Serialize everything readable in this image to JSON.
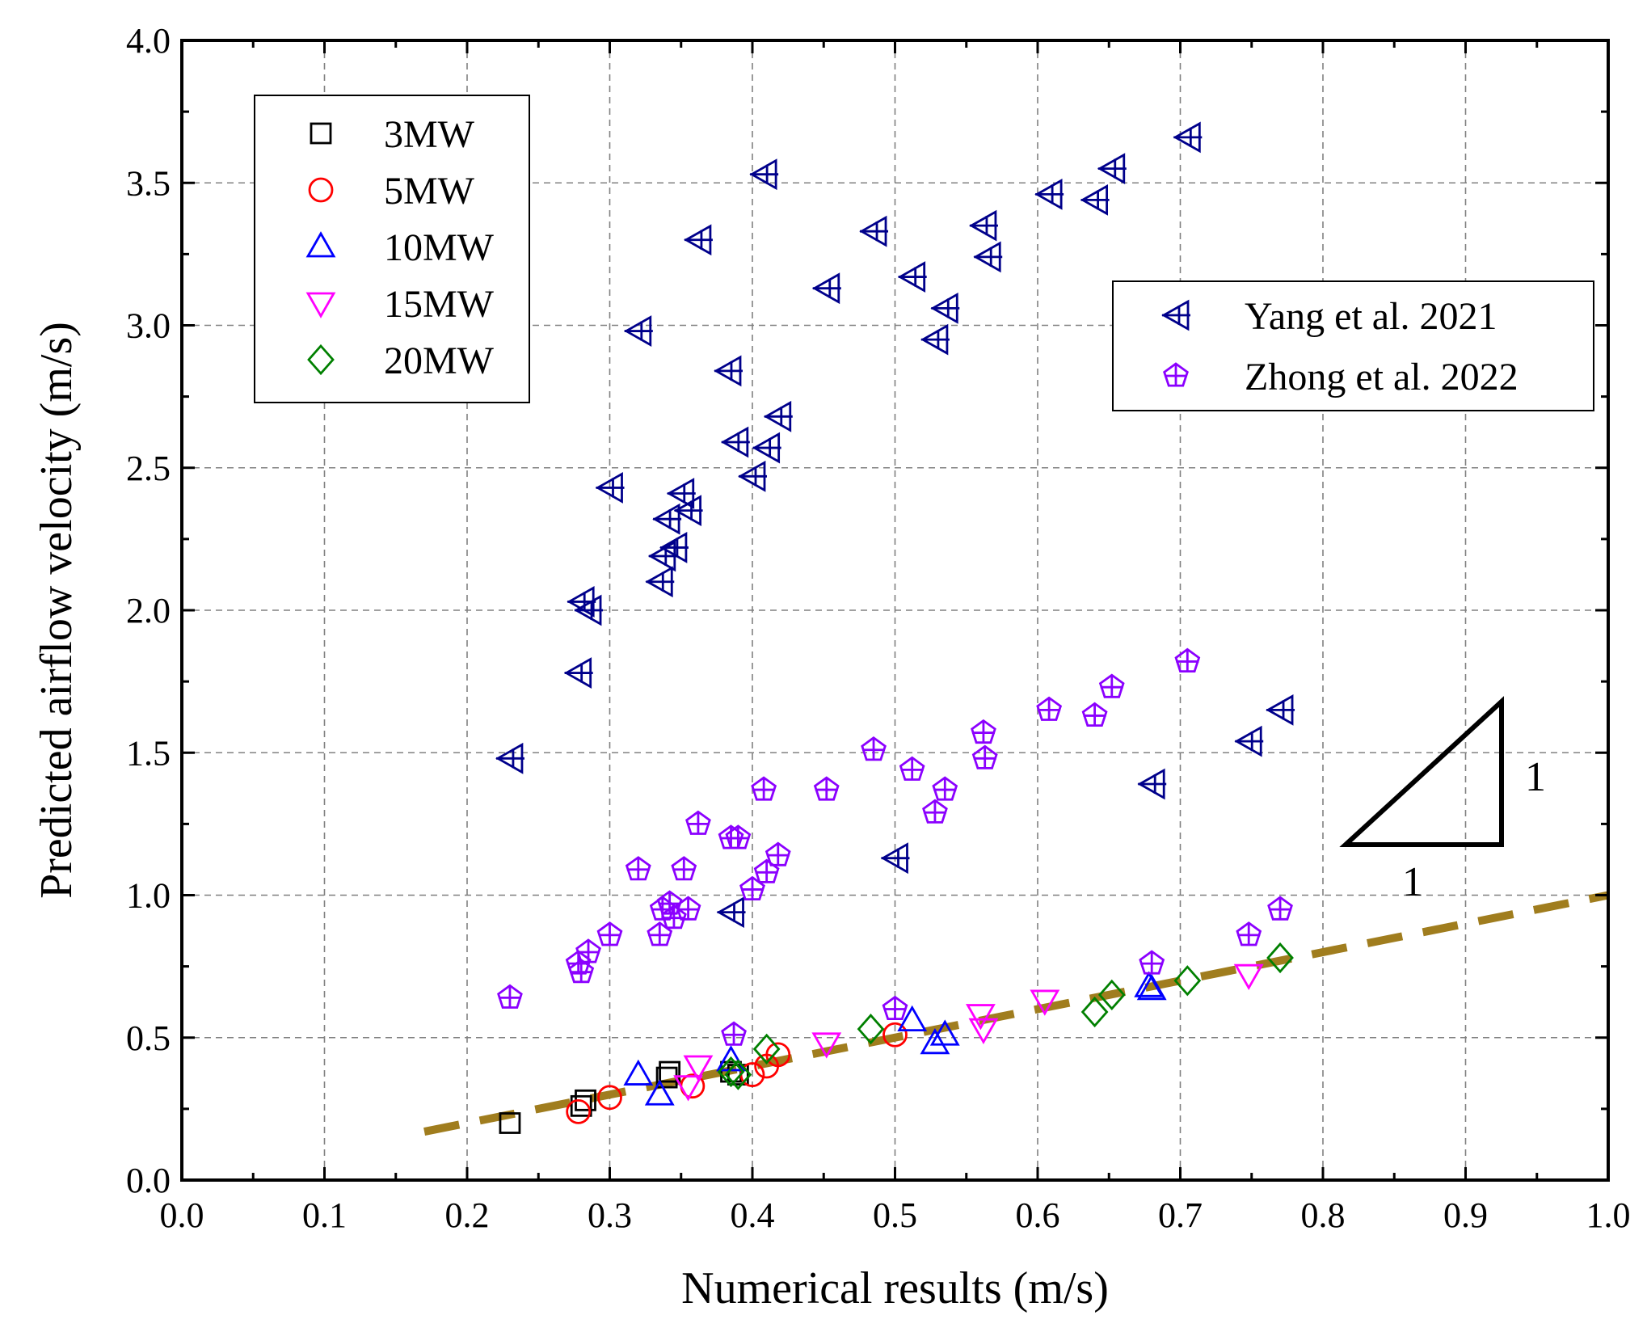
{
  "chart_data": {
    "type": "scatter",
    "xlabel": "Numerical results (m/s)",
    "ylabel": "Predicted airflow velocity (m/s)",
    "xlim": [
      0.0,
      1.0
    ],
    "ylim": [
      0.0,
      4.0
    ],
    "xticks": [
      "0.0",
      "0.1",
      "0.2",
      "0.3",
      "0.4",
      "0.5",
      "0.6",
      "0.7",
      "0.8",
      "0.9",
      "1.0"
    ],
    "yticks": [
      "0.0",
      "0.5",
      "1.0",
      "1.5",
      "2.0",
      "2.5",
      "3.0",
      "3.5",
      "4.0"
    ],
    "grid": true,
    "reference_line": {
      "name": "1:1 line",
      "x": [
        0.17,
        1.0
      ],
      "y": [
        0.17,
        1.0
      ],
      "color": "#A07D1E",
      "style": "dashed"
    },
    "slope_triangle": {
      "horizontal_label": "1",
      "vertical_label": "1"
    },
    "series": [
      {
        "name": "3MW",
        "marker": "square",
        "color": "#000000",
        "points": [
          [
            0.23,
            0.2
          ],
          [
            0.28,
            0.26
          ],
          [
            0.283,
            0.28
          ],
          [
            0.34,
            0.36
          ],
          [
            0.342,
            0.38
          ],
          [
            0.385,
            0.38
          ],
          [
            0.39,
            0.37
          ]
        ]
      },
      {
        "name": "5MW",
        "marker": "circle",
        "color": "#FF0000",
        "points": [
          [
            0.278,
            0.24
          ],
          [
            0.3,
            0.29
          ],
          [
            0.358,
            0.33
          ],
          [
            0.4,
            0.37
          ],
          [
            0.41,
            0.4
          ],
          [
            0.418,
            0.44
          ],
          [
            0.5,
            0.51
          ]
        ]
      },
      {
        "name": "10MW",
        "marker": "triangle-up",
        "color": "#0000FF",
        "points": [
          [
            0.32,
            0.37
          ],
          [
            0.335,
            0.3
          ],
          [
            0.385,
            0.42
          ],
          [
            0.512,
            0.56
          ],
          [
            0.528,
            0.48
          ],
          [
            0.535,
            0.51
          ],
          [
            0.678,
            0.68
          ],
          [
            0.68,
            0.67
          ]
        ]
      },
      {
        "name": "15MW",
        "marker": "triangle-down",
        "color": "#FF00FF",
        "points": [
          [
            0.355,
            0.33
          ],
          [
            0.362,
            0.4
          ],
          [
            0.452,
            0.48
          ],
          [
            0.56,
            0.58
          ],
          [
            0.562,
            0.53
          ],
          [
            0.605,
            0.63
          ],
          [
            0.748,
            0.72
          ]
        ]
      },
      {
        "name": "20MW",
        "marker": "diamond",
        "color": "#008000",
        "points": [
          [
            0.385,
            0.38
          ],
          [
            0.39,
            0.37
          ],
          [
            0.41,
            0.46
          ],
          [
            0.483,
            0.53
          ],
          [
            0.64,
            0.59
          ],
          [
            0.652,
            0.65
          ],
          [
            0.705,
            0.7
          ],
          [
            0.77,
            0.78
          ]
        ]
      },
      {
        "name": "Yang et al. 2021",
        "marker": "arrow-left-cross",
        "color": "#00008B",
        "points": [
          [
            0.23,
            1.48
          ],
          [
            0.278,
            1.78
          ],
          [
            0.28,
            2.03
          ],
          [
            0.285,
            2.0
          ],
          [
            0.3,
            2.43
          ],
          [
            0.32,
            2.98
          ],
          [
            0.335,
            2.1
          ],
          [
            0.337,
            2.19
          ],
          [
            0.34,
            2.32
          ],
          [
            0.345,
            2.22
          ],
          [
            0.35,
            2.41
          ],
          [
            0.355,
            2.35
          ],
          [
            0.362,
            3.3
          ],
          [
            0.385,
            0.94
          ],
          [
            0.383,
            2.84
          ],
          [
            0.388,
            2.59
          ],
          [
            0.4,
            2.47
          ],
          [
            0.41,
            2.57
          ],
          [
            0.408,
            3.53
          ],
          [
            0.418,
            2.68
          ],
          [
            0.452,
            3.13
          ],
          [
            0.485,
            3.33
          ],
          [
            0.5,
            1.13
          ],
          [
            0.512,
            3.17
          ],
          [
            0.528,
            2.95
          ],
          [
            0.535,
            3.06
          ],
          [
            0.562,
            3.35
          ],
          [
            0.565,
            3.24
          ],
          [
            0.608,
            3.46
          ],
          [
            0.64,
            3.44
          ],
          [
            0.652,
            3.55
          ],
          [
            0.68,
            1.39
          ],
          [
            0.705,
            3.66
          ],
          [
            0.748,
            1.54
          ],
          [
            0.77,
            1.65
          ]
        ]
      },
      {
        "name": "Zhong et al. 2022",
        "marker": "pentagon-cross",
        "color": "#8B00FF",
        "points": [
          [
            0.23,
            0.64
          ],
          [
            0.278,
            0.76
          ],
          [
            0.28,
            0.73
          ],
          [
            0.285,
            0.8
          ],
          [
            0.3,
            0.86
          ],
          [
            0.32,
            1.09
          ],
          [
            0.335,
            0.86
          ],
          [
            0.337,
            0.95
          ],
          [
            0.342,
            0.97
          ],
          [
            0.345,
            0.92
          ],
          [
            0.352,
            1.09
          ],
          [
            0.355,
            0.95
          ],
          [
            0.362,
            1.25
          ],
          [
            0.385,
            1.2
          ],
          [
            0.387,
            0.51
          ],
          [
            0.39,
            1.2
          ],
          [
            0.4,
            1.02
          ],
          [
            0.408,
            1.37
          ],
          [
            0.41,
            1.08
          ],
          [
            0.418,
            1.14
          ],
          [
            0.452,
            1.37
          ],
          [
            0.485,
            1.51
          ],
          [
            0.5,
            0.6
          ],
          [
            0.512,
            1.44
          ],
          [
            0.528,
            1.29
          ],
          [
            0.535,
            1.37
          ],
          [
            0.562,
            1.57
          ],
          [
            0.563,
            1.48
          ],
          [
            0.608,
            1.65
          ],
          [
            0.64,
            1.63
          ],
          [
            0.652,
            1.73
          ],
          [
            0.68,
            0.76
          ],
          [
            0.705,
            1.82
          ],
          [
            0.748,
            0.86
          ],
          [
            0.77,
            0.95
          ]
        ]
      }
    ]
  }
}
